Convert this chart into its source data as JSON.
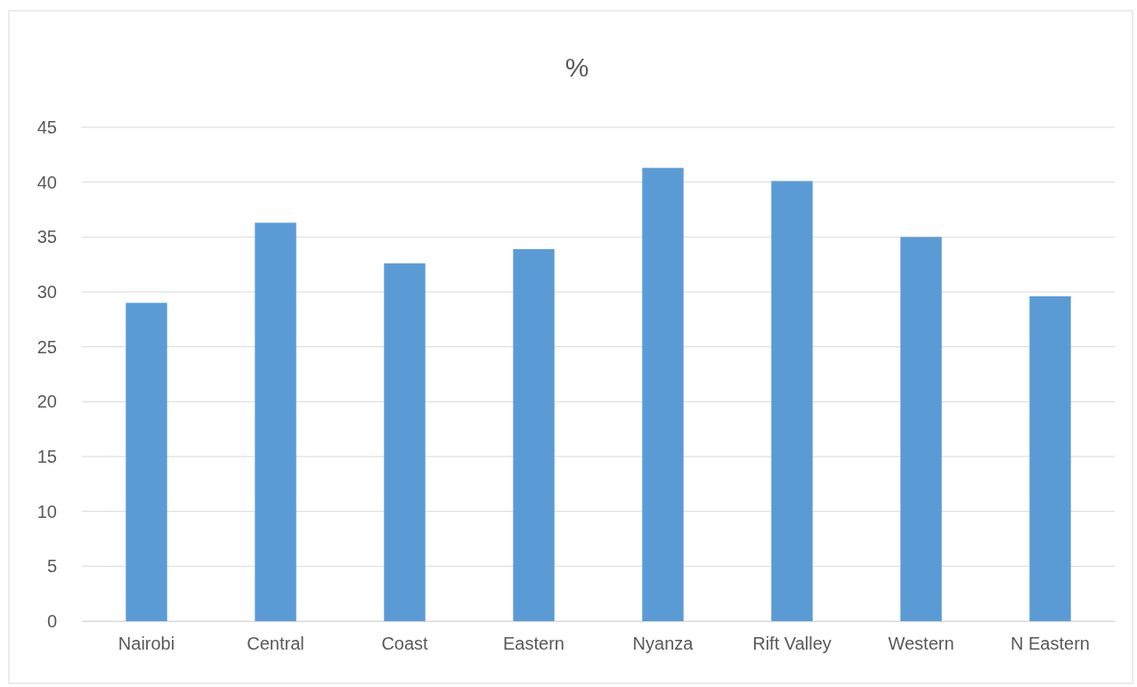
{
  "chart_data": {
    "type": "bar",
    "title": "%",
    "categories": [
      "Nairobi",
      "Central",
      "Coast",
      "Eastern",
      "Nyanza",
      "Rift Valley",
      "Western",
      "N Eastern"
    ],
    "values": [
      29.0,
      36.3,
      32.6,
      33.9,
      41.3,
      40.1,
      35.0,
      29.6
    ],
    "color": "#5b9bd5",
    "ylim": [
      0,
      45
    ],
    "yticks": [
      0,
      5,
      10,
      15,
      20,
      25,
      30,
      35,
      40,
      45
    ],
    "grid": "y"
  }
}
